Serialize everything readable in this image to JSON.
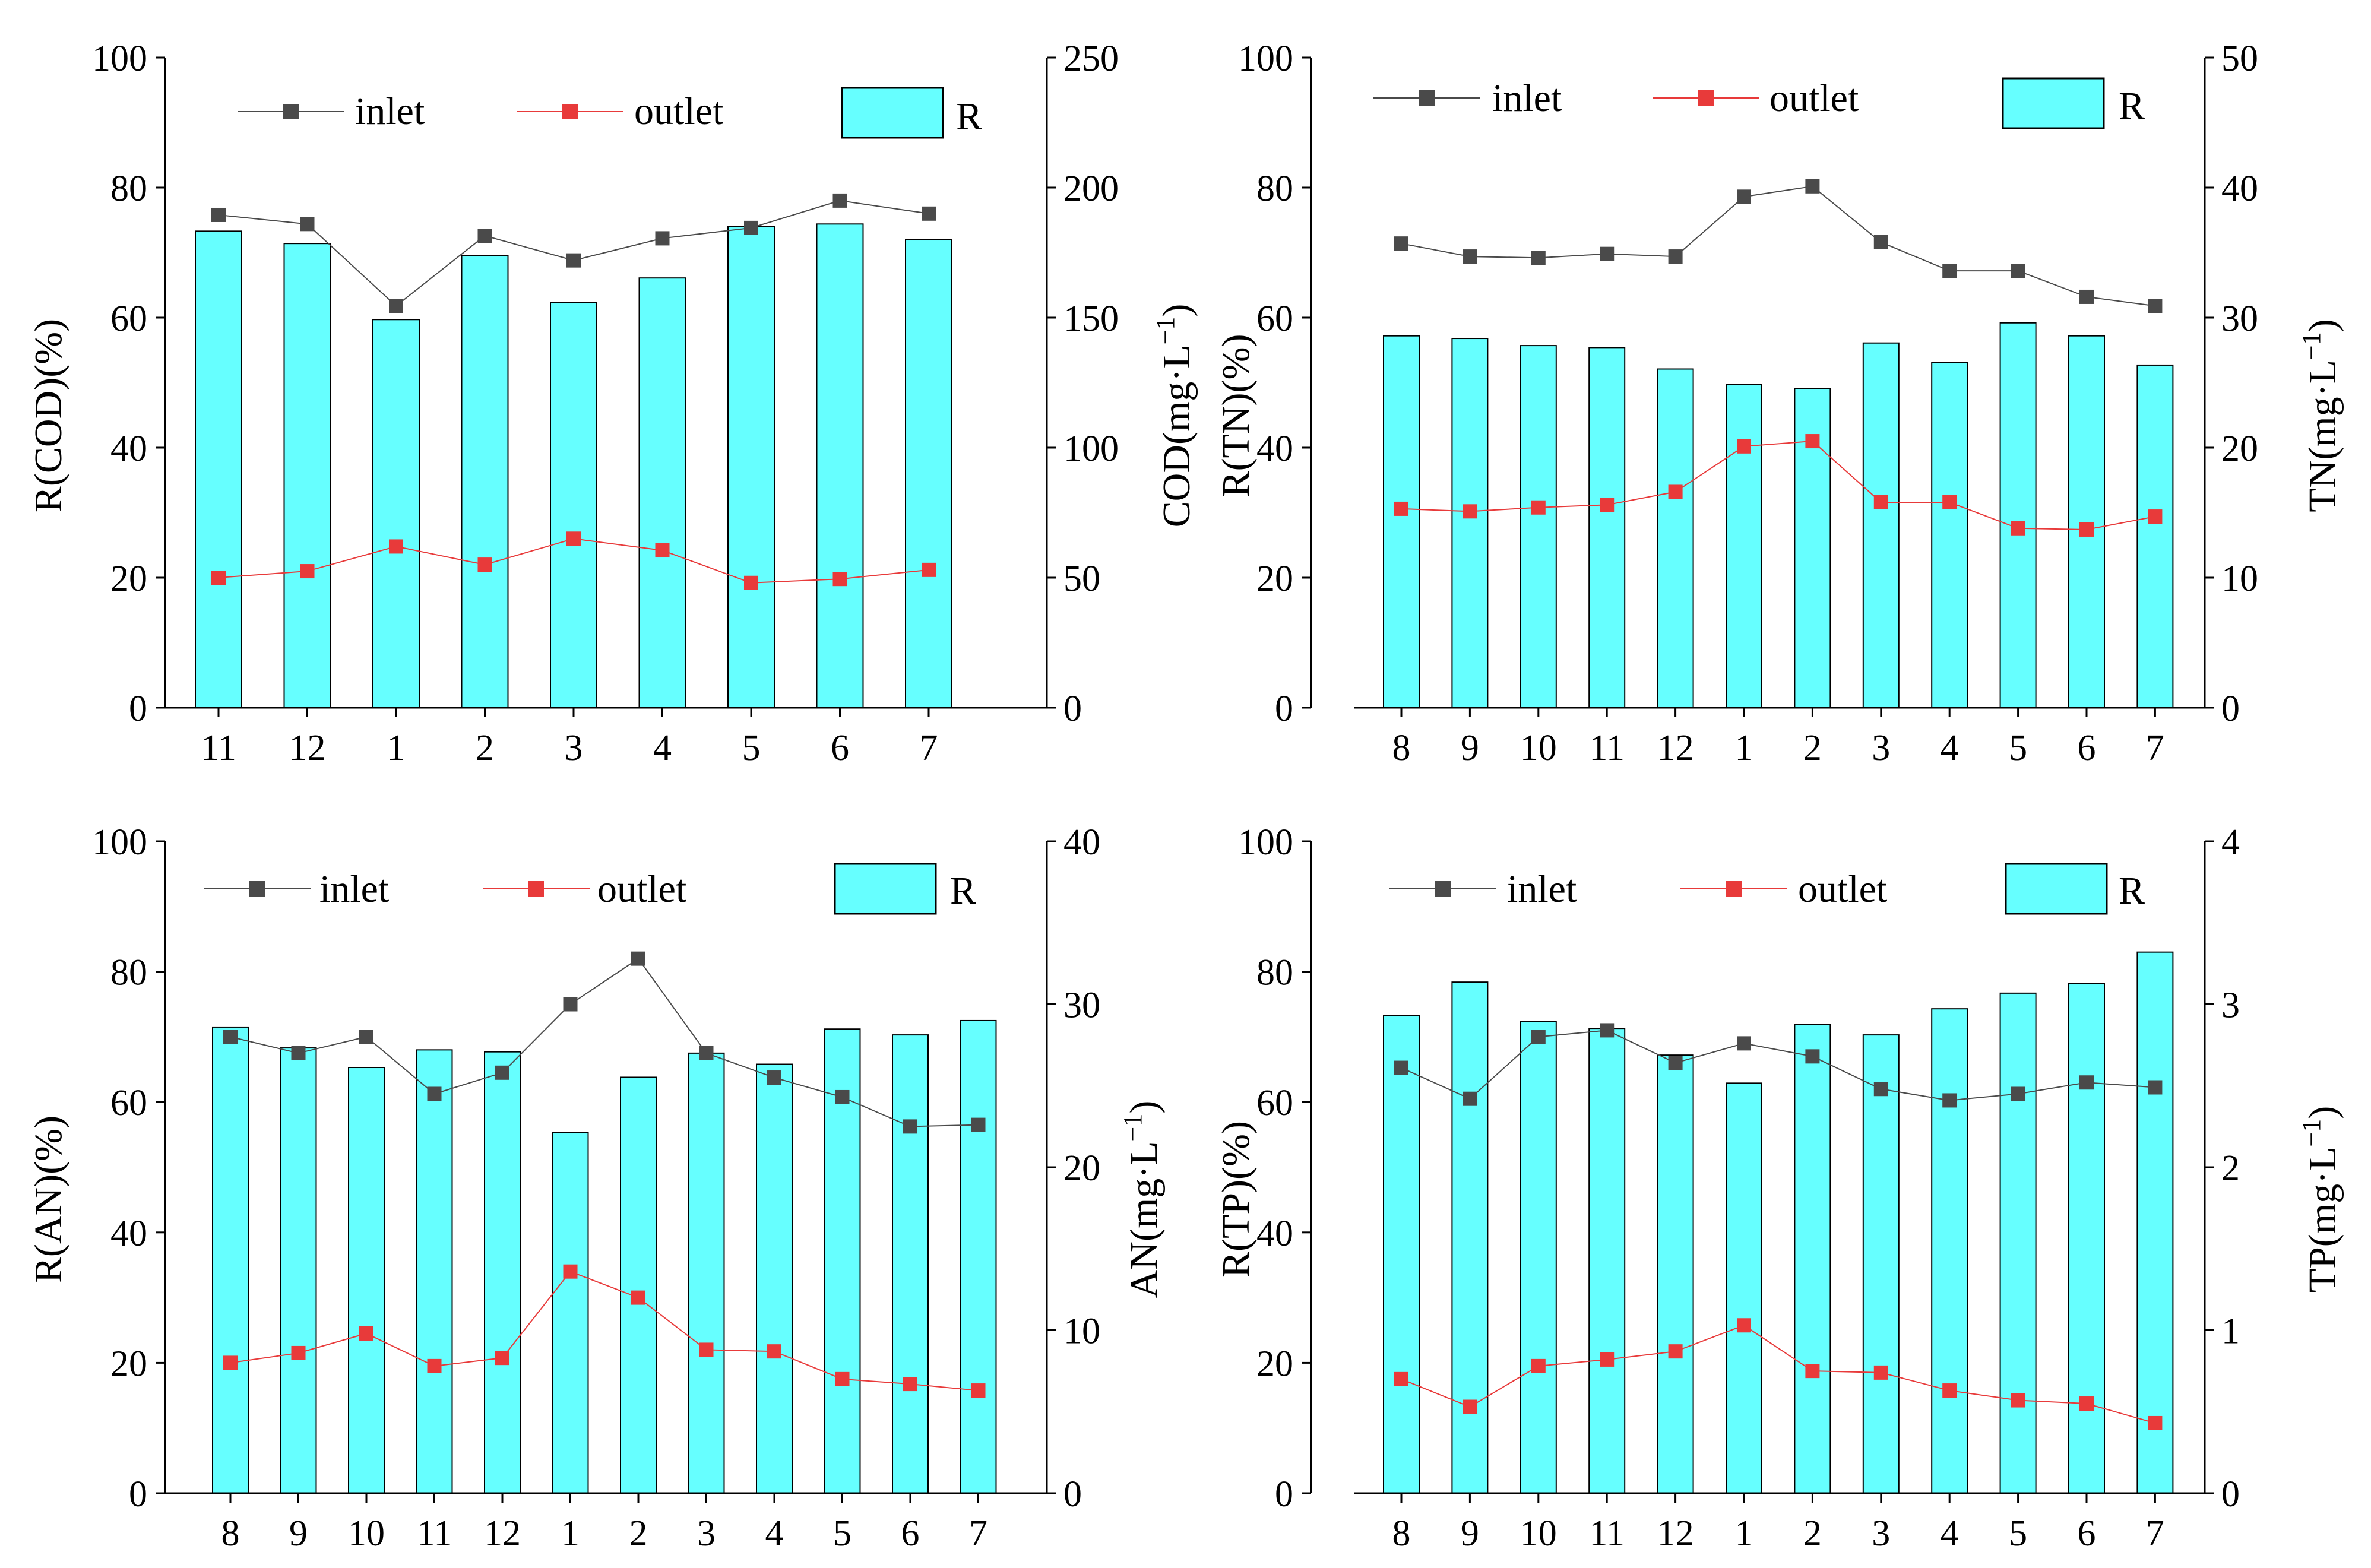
{
  "colors": {
    "bar": "#66FFFF",
    "inlet": "#4A4A4A",
    "outlet": "#E83A3A",
    "axis": "#000000"
  },
  "chart_data": [
    {
      "type": "bar+line",
      "id": "cod",
      "categories": [
        "11",
        "12",
        "1",
        "2",
        "3",
        "4",
        "5",
        "6",
        "7"
      ],
      "left_axis": {
        "label": "R(COD)(%)",
        "range": [
          0,
          100
        ],
        "ticks": [
          "0",
          "20",
          "40",
          "60",
          "80",
          "100"
        ]
      },
      "right_axis": {
        "label_main": "COD(mg·L",
        "label_sup": "−1",
        "label_end": ")",
        "range": [
          0,
          250
        ],
        "ticks": [
          "0",
          "50",
          "100",
          "150",
          "200",
          "250"
        ]
      },
      "legend": {
        "inlet": "inlet",
        "outlet": "outlet",
        "bar": "R"
      },
      "R": [
        73.3,
        71.4,
        59.7,
        69.5,
        62.3,
        66.1,
        74.0,
        74.4,
        72.0
      ],
      "inlet": [
        189.5,
        186.0,
        154.5,
        181.5,
        172.0,
        180.5,
        184.5,
        195.0,
        190.0
      ],
      "outlet": [
        50.0,
        52.5,
        62.0,
        55.0,
        65.0,
        60.5,
        48.0,
        49.5,
        53.0
      ]
    },
    {
      "type": "bar+line",
      "id": "tn",
      "categories": [
        "8",
        "9",
        "10",
        "11",
        "12",
        "1",
        "2",
        "3",
        "4",
        "5",
        "6",
        "7"
      ],
      "left_axis": {
        "label": "R(TN)(%)",
        "range": [
          0,
          100
        ],
        "ticks": [
          "0",
          "20",
          "40",
          "60",
          "80",
          "100"
        ]
      },
      "right_axis": {
        "label_main": "TN(mg·L",
        "label_sup": "−1",
        "label_end": ")",
        "range": [
          0,
          50
        ],
        "ticks": [
          "0",
          "10",
          "20",
          "30",
          "40",
          "50"
        ]
      },
      "legend": {
        "inlet": "inlet",
        "outlet": "outlet",
        "bar": "R"
      },
      "R": [
        57.2,
        56.8,
        55.7,
        55.4,
        52.1,
        49.7,
        49.1,
        56.1,
        53.1,
        59.2,
        57.2,
        52.7
      ],
      "inlet": [
        35.7,
        34.7,
        34.6,
        34.9,
        34.7,
        39.3,
        40.1,
        35.8,
        33.6,
        33.6,
        31.6,
        30.9
      ],
      "outlet": [
        15.3,
        15.1,
        15.4,
        15.6,
        16.6,
        20.1,
        20.5,
        15.8,
        15.8,
        13.8,
        13.7,
        14.7
      ]
    },
    {
      "type": "bar+line",
      "id": "an",
      "categories": [
        "8",
        "9",
        "10",
        "11",
        "12",
        "1",
        "2",
        "3",
        "4",
        "5",
        "6",
        "7"
      ],
      "left_axis": {
        "label": "R(AN)(%)",
        "range": [
          0,
          100
        ],
        "ticks": [
          "0",
          "20",
          "40",
          "60",
          "80",
          "100"
        ]
      },
      "right_axis": {
        "label_main": "AN(mg·L",
        "label_sup": "−1",
        "label_end": ")",
        "range": [
          0,
          40
        ],
        "ticks": [
          "0",
          "10",
          "20",
          "30",
          "40"
        ]
      },
      "legend": {
        "inlet": "inlet",
        "outlet": "outlet",
        "bar": "R"
      },
      "R": [
        71.5,
        68.3,
        65.3,
        68.0,
        67.7,
        55.3,
        63.8,
        67.5,
        65.8,
        71.2,
        70.3,
        72.5
      ],
      "inlet": [
        28.0,
        27.0,
        28.0,
        24.5,
        25.8,
        30.0,
        32.8,
        27.0,
        25.5,
        24.3,
        22.5,
        22.6
      ],
      "outlet": [
        8.0,
        8.6,
        9.8,
        7.8,
        8.3,
        13.6,
        12.0,
        8.8,
        8.7,
        7.0,
        6.7,
        6.3
      ]
    },
    {
      "type": "bar+line",
      "id": "tp",
      "categories": [
        "8",
        "9",
        "10",
        "11",
        "12",
        "1",
        "2",
        "3",
        "4",
        "5",
        "6",
        "7"
      ],
      "left_axis": {
        "label": "R(TP)(%)",
        "range": [
          0,
          100
        ],
        "ticks": [
          "0",
          "20",
          "40",
          "60",
          "80",
          "100"
        ]
      },
      "right_axis": {
        "label_main": "TP(mg·L",
        "label_sup": "−1",
        "label_end": ")",
        "range": [
          0,
          4
        ],
        "ticks": [
          "0",
          "1",
          "2",
          "3",
          "4"
        ]
      },
      "legend": {
        "inlet": "inlet",
        "outlet": "outlet",
        "bar": "R"
      },
      "R": [
        73.3,
        78.4,
        72.4,
        71.3,
        67.2,
        62.9,
        71.9,
        70.3,
        74.3,
        76.7,
        78.2,
        83.0
      ],
      "inlet": [
        2.61,
        2.42,
        2.8,
        2.84,
        2.64,
        2.76,
        2.68,
        2.48,
        2.41,
        2.45,
        2.52,
        2.49
      ],
      "outlet": [
        0.7,
        0.53,
        0.78,
        0.82,
        0.87,
        1.03,
        0.75,
        0.74,
        0.63,
        0.57,
        0.55,
        0.43
      ]
    }
  ]
}
